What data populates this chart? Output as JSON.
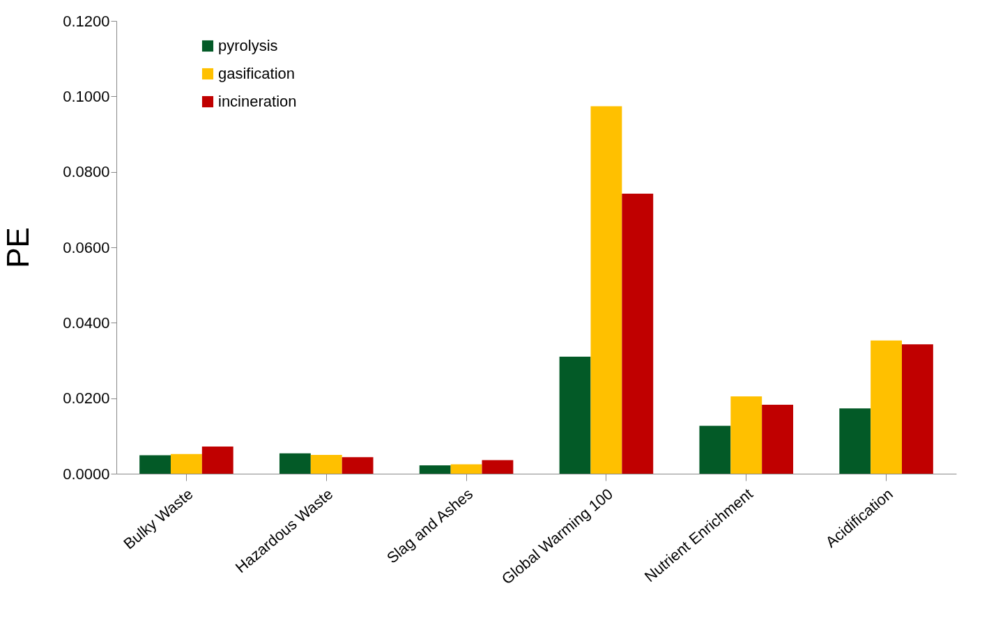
{
  "chart_data": {
    "type": "bar",
    "ylabel": "PE",
    "categories": [
      "Bulky Waste",
      "Hazardous Waste",
      "Slag and Ashes",
      "Global Warming 100",
      "Nutrient Enrichment",
      "Acidification"
    ],
    "series": [
      {
        "name": "pyrolysis",
        "color": "#035a27",
        "values": [
          0.0049,
          0.0054,
          0.0022,
          0.031,
          0.0127,
          0.0173
        ]
      },
      {
        "name": "gasification",
        "color": "#ffc000",
        "values": [
          0.0052,
          0.005,
          0.0025,
          0.0974,
          0.0205,
          0.0353
        ]
      },
      {
        "name": "incineration",
        "color": "#c00000",
        "values": [
          0.0072,
          0.0044,
          0.0036,
          0.0742,
          0.0183,
          0.0343
        ]
      }
    ],
    "ylim": [
      0,
      0.12
    ],
    "yticks": [
      {
        "value": 0,
        "label": "0.0000"
      },
      {
        "value": 0.02,
        "label": "0.0200"
      },
      {
        "value": 0.04,
        "label": "0.0400"
      },
      {
        "value": 0.06,
        "label": "0.0600"
      },
      {
        "value": 0.08,
        "label": "0.0800"
      },
      {
        "value": 0.1,
        "label": "0.1000"
      },
      {
        "value": 0.12,
        "label": "0.1200"
      }
    ],
    "grid": false,
    "legend": "top left"
  }
}
